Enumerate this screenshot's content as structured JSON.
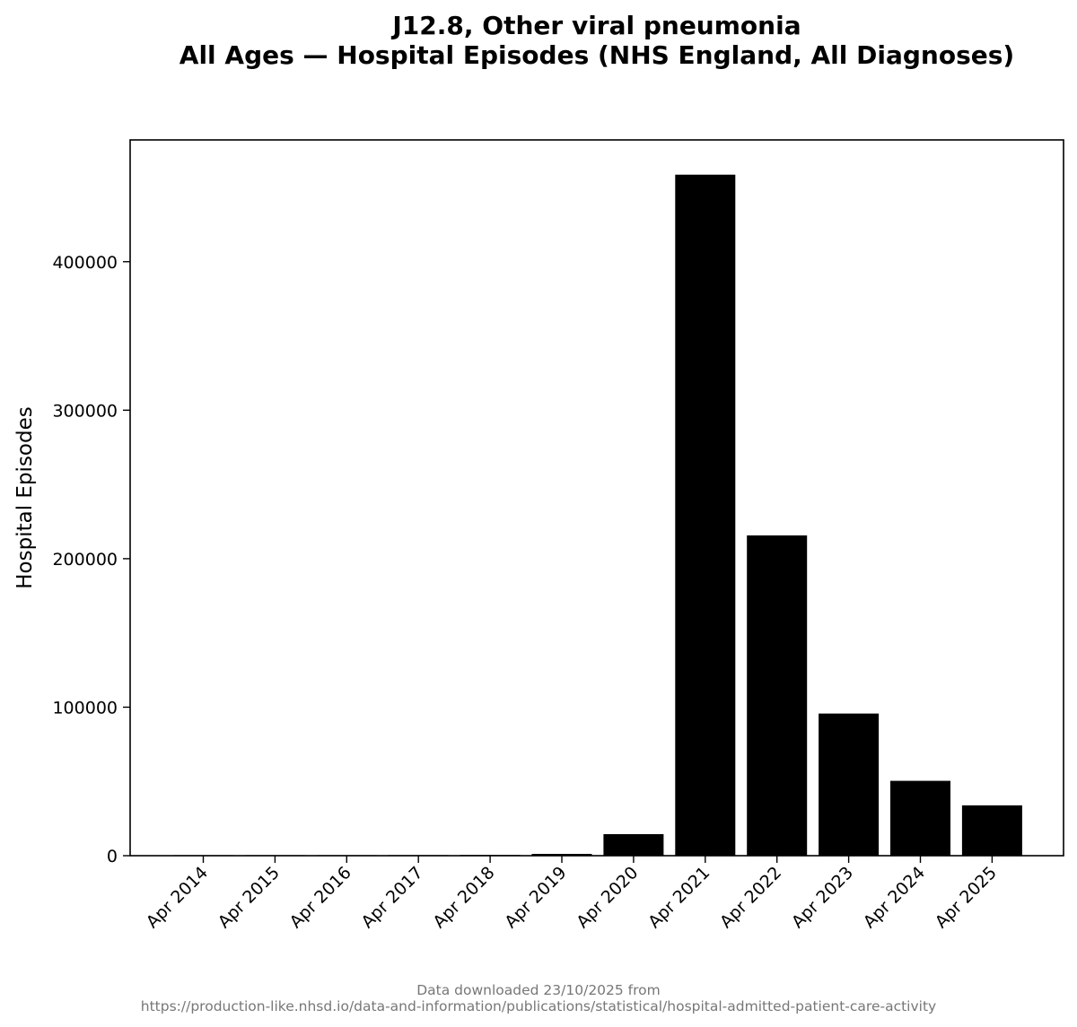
{
  "chart_data": {
    "type": "bar",
    "title": "J12.8, Other viral pneumonia",
    "subtitle": "All Ages — Hospital Episodes (NHS England, All Diagnoses)",
    "xlabel": "",
    "ylabel": "Hospital Episodes",
    "categories": [
      "Apr 2014",
      "Apr 2015",
      "Apr 2016",
      "Apr 2017",
      "Apr 2018",
      "Apr 2019",
      "Apr 2020",
      "Apr 2021",
      "Apr 2022",
      "Apr 2023",
      "Apr 2024",
      "Apr 2025"
    ],
    "values": [
      120,
      150,
      180,
      400,
      500,
      1200,
      14500,
      458600,
      215700,
      95700,
      50400,
      33900
    ],
    "ylim": [
      0,
      482000
    ],
    "yticks": [
      0,
      100000,
      200000,
      300000,
      400000
    ],
    "ytick_labels": [
      "0",
      "100000",
      "200000",
      "300000",
      "400000"
    ],
    "bar_color": "#000000",
    "grid": false,
    "legend": "none"
  },
  "footer": {
    "line1": "Data downloaded 23/10/2025 from",
    "line2": "https://production-like.nhsd.io/data-and-information/publications/statistical/hospital-admitted-patient-care-activity"
  }
}
